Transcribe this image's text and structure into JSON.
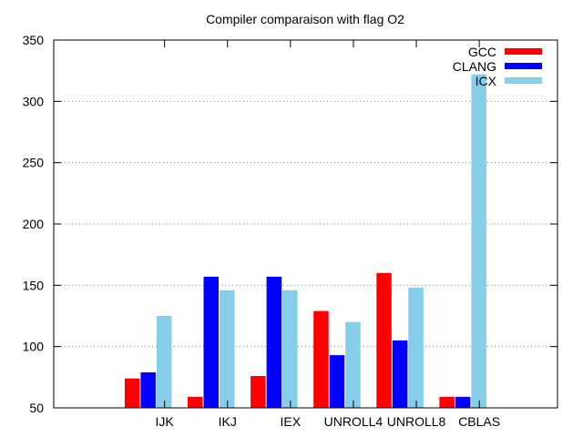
{
  "chart_data": {
    "type": "bar",
    "title": "Compiler comparaison with flag O2",
    "xlabel": "",
    "ylabel": "",
    "ylim": [
      50,
      350
    ],
    "yticks": [
      50,
      100,
      150,
      200,
      250,
      300,
      350
    ],
    "grid": "horizontal dotted",
    "legend_position": "top-right",
    "categories": [
      "IJK",
      "IKJ",
      "IEX",
      "UNROLL4",
      "UNROLL8",
      "CBLAS"
    ],
    "series": [
      {
        "name": "GCC",
        "color": "#ff0000",
        "values": [
          74,
          59,
          76,
          129,
          160,
          59
        ]
      },
      {
        "name": "CLANG",
        "color": "#0000ff",
        "values": [
          79,
          157,
          157,
          93,
          105,
          59
        ]
      },
      {
        "name": "ICX",
        "color": "#87ceeb",
        "values": [
          125,
          146,
          146,
          120,
          148,
          322
        ]
      }
    ]
  }
}
